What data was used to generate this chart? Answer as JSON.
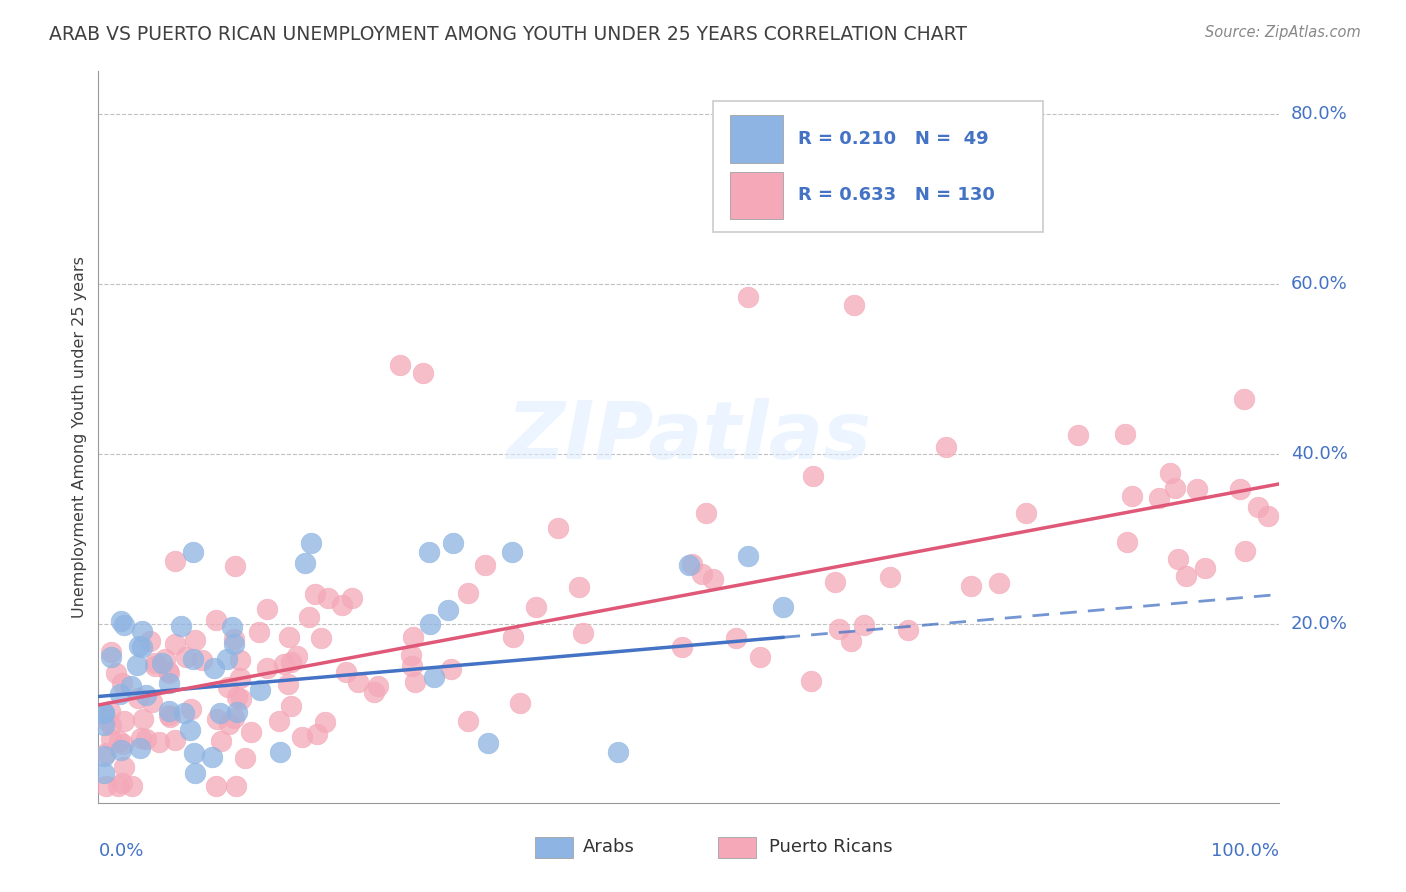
{
  "title": "ARAB VS PUERTO RICAN UNEMPLOYMENT AMONG YOUTH UNDER 25 YEARS CORRELATION CHART",
  "source": "Source: ZipAtlas.com",
  "ylabel": "Unemployment Among Youth under 25 years",
  "arab_R": 0.21,
  "arab_N": 49,
  "pr_R": 0.633,
  "pr_N": 130,
  "arab_color": "#8db4e2",
  "pr_color": "#f4a8b8",
  "arab_line_color": "#4472c4",
  "pr_line_color": "#e05878",
  "legend_text_color": "#4472c4",
  "text_dark_color": "#333333",
  "title_color": "#404040",
  "source_color": "#888888",
  "grid_color": "#bbbbbb",
  "background_color": "#ffffff",
  "xlim": [
    0.0,
    1.0
  ],
  "ylim": [
    -0.01,
    0.85
  ],
  "arab_line_start_x": 0.0,
  "arab_line_end_solid_x": 0.58,
  "arab_line_end_dashed_x": 1.0,
  "arab_line_start_y": 0.115,
  "arab_line_end_y": 0.235,
  "pr_line_start_x": 0.0,
  "pr_line_end_x": 1.0,
  "pr_line_start_y": 0.105,
  "pr_line_end_y": 0.365
}
